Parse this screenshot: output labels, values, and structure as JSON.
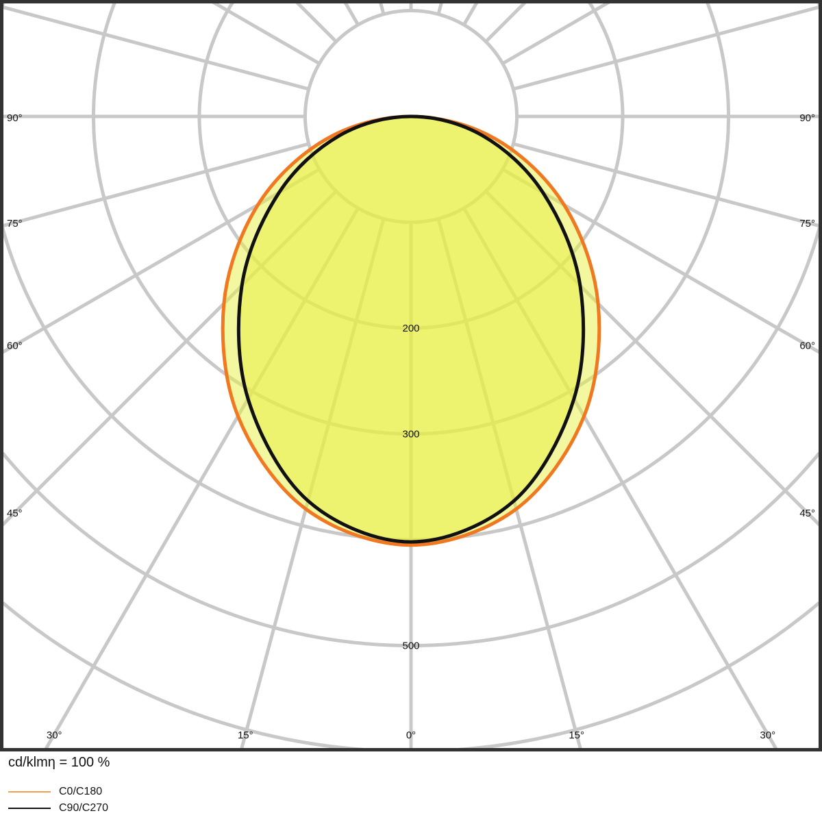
{
  "chart_data": {
    "type": "polar",
    "unit_label": "cd/klmη = 100 %",
    "radial_ticks": [
      100,
      200,
      300,
      400,
      500,
      600
    ],
    "radial_labels": [
      "200",
      "300",
      "500"
    ],
    "angle_step_deg": 15,
    "angle_labels": {
      "left": [
        "90°",
        "75°",
        "60°",
        "45°"
      ],
      "right": [
        "90°",
        "75°",
        "60°",
        "45°"
      ],
      "bottom": [
        "30°",
        "15°",
        "0°",
        "15°",
        "30°"
      ]
    },
    "angles_deg": [
      0,
      15,
      30,
      45,
      60,
      75,
      90
    ],
    "series": [
      {
        "name": "C0/C180",
        "color": "#f07820",
        "values": [
          405,
          384,
          327,
          250,
          167,
          83,
          0
        ]
      },
      {
        "name": "C90/C270",
        "color": "#111111",
        "values": [
          402,
          376,
          308,
          226,
          144,
          70,
          0
        ]
      }
    ],
    "fill_color": "#e8f040",
    "grid": true,
    "legend_position": "bottom-left"
  }
}
